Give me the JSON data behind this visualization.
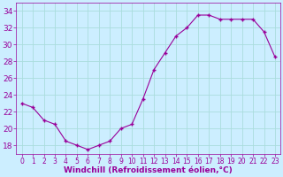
{
  "x": [
    0,
    1,
    2,
    3,
    4,
    5,
    6,
    7,
    8,
    9,
    10,
    11,
    12,
    13,
    14,
    15,
    16,
    17,
    18,
    19,
    20,
    21,
    22,
    23
  ],
  "values": [
    23,
    22.5,
    21,
    20.5,
    18.5,
    18,
    17.5,
    18,
    18.5,
    20,
    20.5,
    23.5,
    27,
    29,
    31,
    32,
    33.5,
    33.5,
    33,
    33,
    33,
    33,
    31.5,
    28.5
  ],
  "line_color": "#990099",
  "marker_color": "#990099",
  "bg_color": "#cceeff",
  "grid_color": "#aadddd",
  "xlabel": "Windchill (Refroidissement éolien,°C)",
  "ylim": [
    17,
    35
  ],
  "xlim": [
    -0.5,
    23.5
  ],
  "yticks": [
    18,
    20,
    22,
    24,
    26,
    28,
    30,
    32,
    34
  ],
  "xtick_labels": [
    "0",
    "1",
    "2",
    "3",
    "4",
    "5",
    "6",
    "7",
    "8",
    "9",
    "10",
    "11",
    "12",
    "13",
    "14",
    "15",
    "16",
    "17",
    "18",
    "19",
    "20",
    "21",
    "22",
    "23"
  ],
  "xlabel_color": "#990099",
  "tick_color": "#990099",
  "xlabel_fontsize": 6.5,
  "ytick_fontsize": 6.5,
  "xtick_fontsize": 5.5
}
